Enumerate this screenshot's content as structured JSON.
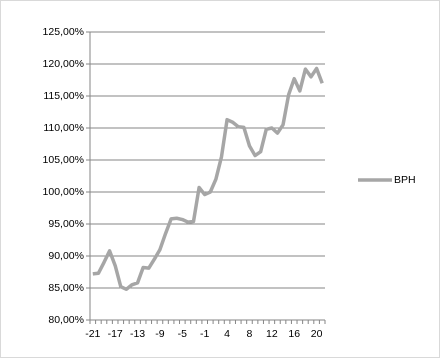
{
  "chart_data": {
    "type": "line",
    "categories": [
      "-21",
      null,
      null,
      null,
      "-17",
      null,
      null,
      null,
      "-13",
      null,
      null,
      null,
      "-9",
      null,
      null,
      null,
      "-5",
      null,
      null,
      null,
      "-1",
      null,
      null,
      null,
      "4",
      null,
      null,
      null,
      "8",
      null,
      null,
      null,
      "12",
      null,
      null,
      null,
      "16",
      null,
      null,
      null,
      "20",
      null
    ],
    "series": [
      {
        "name": "BPH",
        "color": "#a6a6a6",
        "values": [
          87.2,
          87.3,
          89,
          90.8,
          88.5,
          85.2,
          84.8,
          85.5,
          85.8,
          88.2,
          88.1,
          89.5,
          91,
          93.5,
          95.8,
          95.9,
          95.7,
          95.3,
          95.4,
          100.7,
          99.6,
          100,
          102,
          105.5,
          111.3,
          110.9,
          110.2,
          110.1,
          107.2,
          105.7,
          106.3,
          109.8,
          110,
          109.2,
          110.5,
          115.2,
          117.7,
          115.8,
          119.2,
          118,
          119.3,
          117
        ]
      }
    ],
    "ylim": [
      80,
      125
    ],
    "yticks": [
      {
        "value": 80,
        "label": "80,00%"
      },
      {
        "value": 85,
        "label": "85,00%"
      },
      {
        "value": 90,
        "label": "90,00%"
      },
      {
        "value": 95,
        "label": "95,00%"
      },
      {
        "value": 100,
        "label": "100,00%"
      },
      {
        "value": 105,
        "label": "105,00%"
      },
      {
        "value": 110,
        "label": "110,00%"
      },
      {
        "value": 115,
        "label": "115,00%"
      },
      {
        "value": 120,
        "label": "120,00%"
      },
      {
        "value": 125,
        "label": "125,00%"
      }
    ],
    "grid": true,
    "legend": "right"
  }
}
